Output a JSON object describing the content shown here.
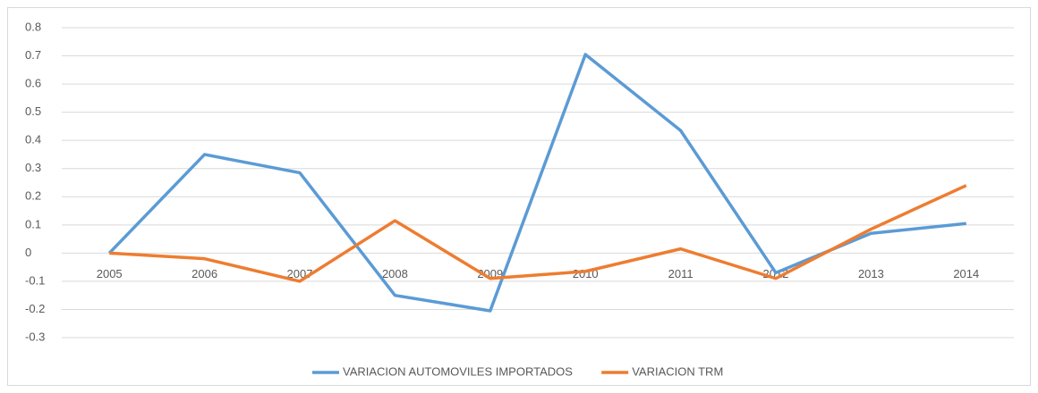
{
  "chart_data": {
    "type": "line",
    "categories": [
      "2005",
      "2006",
      "2007",
      "2008",
      "2009",
      "2010",
      "2011",
      "2012",
      "2013",
      "2014"
    ],
    "series": [
      {
        "name": "VARIACION AUTOMOVILES IMPORTADOS",
        "color": "#5b9bd5",
        "values": [
          0,
          0.35,
          0.285,
          -0.15,
          -0.205,
          0.705,
          0.435,
          -0.07,
          0.07,
          0.105
        ]
      },
      {
        "name": "VARIACION TRM",
        "color": "#ed7d31",
        "values": [
          0,
          -0.02,
          -0.1,
          0.115,
          -0.09,
          -0.065,
          0.015,
          -0.09,
          0.085,
          0.24
        ]
      }
    ],
    "ylim": [
      -0.3,
      0.8
    ],
    "yticks": [
      -0.3,
      -0.2,
      -0.1,
      0,
      0.1,
      0.2,
      0.3,
      0.4,
      0.5,
      0.6,
      0.7,
      0.8
    ],
    "grid": true,
    "legend": "bottom"
  }
}
